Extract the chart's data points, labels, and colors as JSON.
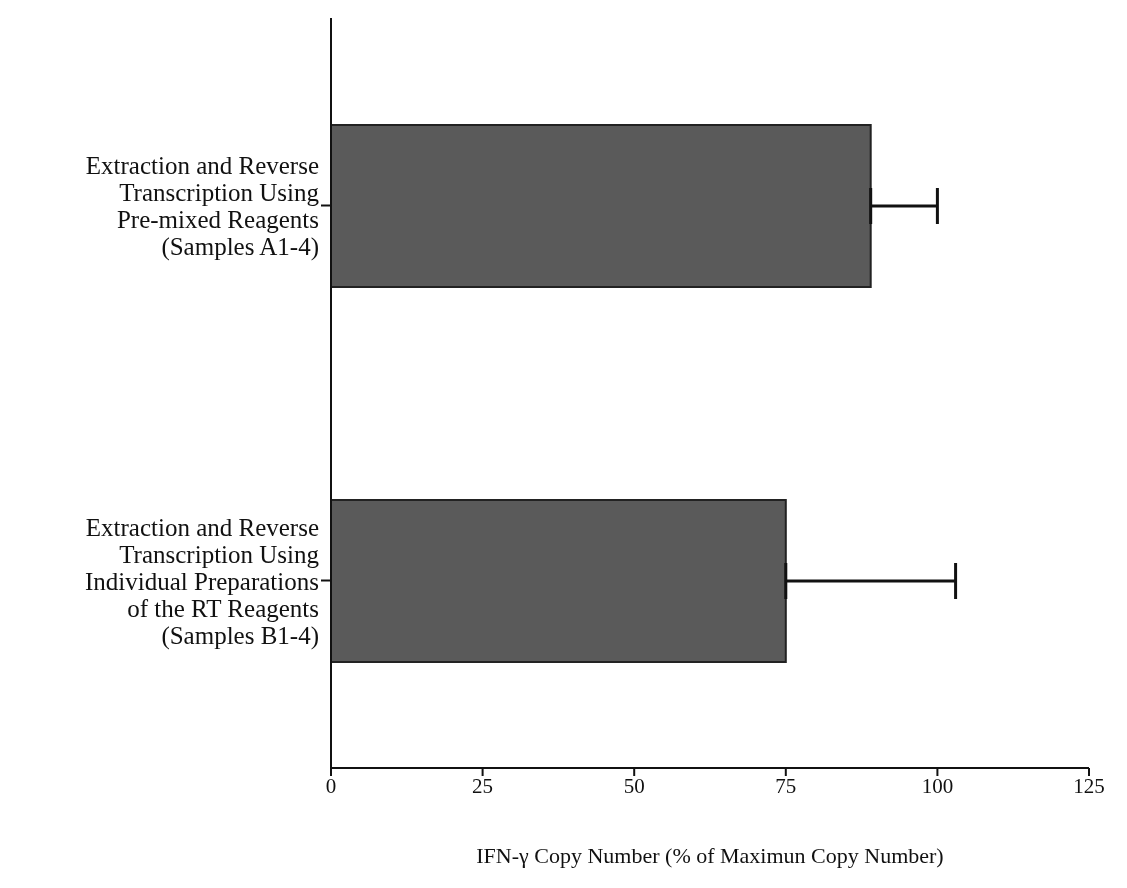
{
  "chart_data": {
    "type": "bar",
    "orientation": "horizontal",
    "xlabel": "IFN-γ Copy Number (% of Maximun Copy Number)",
    "categories": [
      "Extraction and Reverse\nTranscription Using\nPre-mixed Reagents\n(Samples A1-4)",
      "Extraction and Reverse\nTranscription Using\nIndividual Preparations\nof the RT Reagents\n(Samples B1-4)"
    ],
    "values": [
      89,
      75
    ],
    "errors": [
      [
        89,
        100
      ],
      [
        75,
        103
      ]
    ],
    "color": "#5a5a5a",
    "xlim": [
      0,
      125
    ],
    "xticks": [
      0,
      25,
      50,
      75,
      100,
      125
    ],
    "grid": false,
    "legend": false
  }
}
